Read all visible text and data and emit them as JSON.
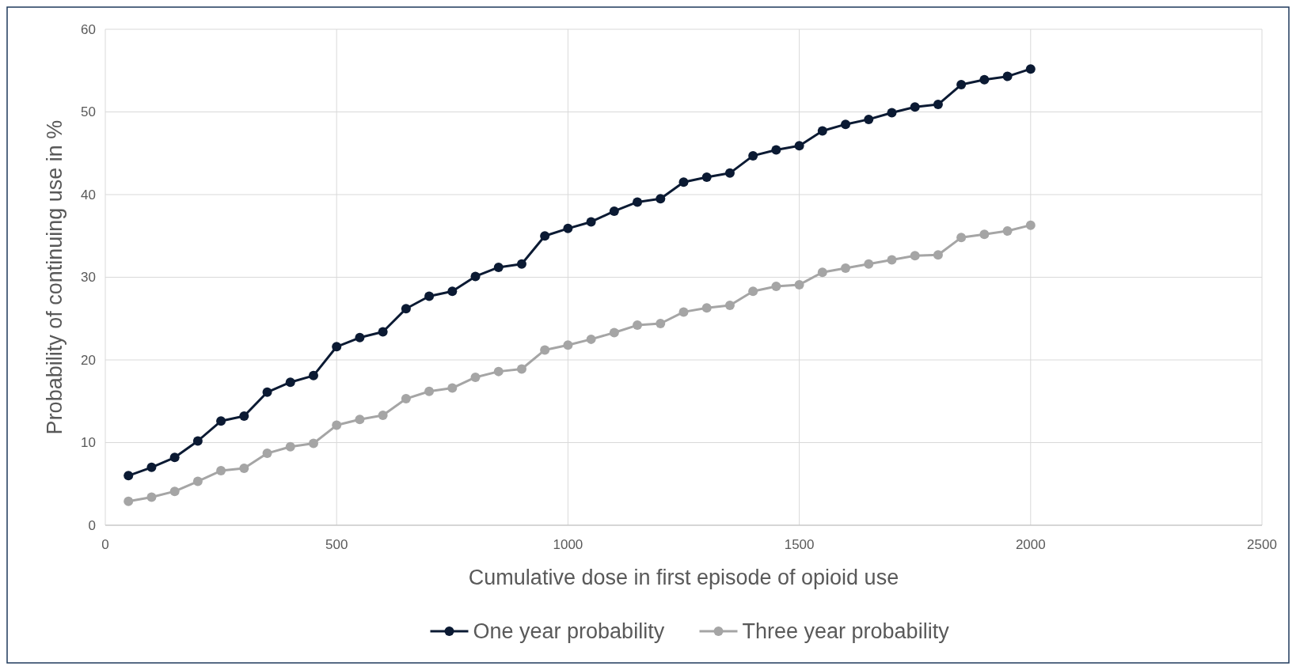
{
  "chart_data": {
    "type": "line",
    "xlabel": "Cumulative dose in first episode of opioid use",
    "ylabel": "Probability of continuing use in %",
    "x": [
      50,
      100,
      150,
      200,
      250,
      300,
      350,
      400,
      450,
      500,
      550,
      600,
      650,
      700,
      750,
      800,
      850,
      900,
      950,
      1000,
      1050,
      1100,
      1150,
      1200,
      1250,
      1300,
      1350,
      1400,
      1450,
      1500,
      1550,
      1600,
      1650,
      1700,
      1750,
      1800,
      1850,
      1900,
      1950,
      2000
    ],
    "series": [
      {
        "name": "One year probability",
        "color": "#0b1a33",
        "values": [
          6.0,
          7.0,
          8.2,
          10.2,
          12.6,
          13.2,
          16.1,
          17.3,
          18.1,
          21.6,
          22.7,
          23.4,
          26.2,
          27.7,
          28.3,
          30.1,
          31.2,
          31.6,
          35.0,
          35.9,
          36.7,
          38.0,
          39.1,
          39.5,
          41.5,
          42.1,
          42.6,
          44.7,
          45.4,
          45.9,
          47.7,
          48.5,
          49.1,
          49.9,
          50.6,
          50.9,
          53.3,
          53.9,
          54.3,
          55.2
        ]
      },
      {
        "name": "Three year probability",
        "color": "#a5a5a5",
        "values": [
          2.9,
          3.4,
          4.1,
          5.3,
          6.6,
          6.9,
          8.7,
          9.5,
          9.9,
          12.1,
          12.8,
          13.3,
          15.3,
          16.2,
          16.6,
          17.9,
          18.6,
          18.9,
          21.2,
          21.8,
          22.5,
          23.3,
          24.2,
          24.4,
          25.8,
          26.3,
          26.6,
          28.3,
          28.9,
          29.1,
          30.6,
          31.1,
          31.6,
          32.1,
          32.6,
          32.7,
          34.8,
          35.2,
          35.6,
          36.3
        ]
      }
    ],
    "xlim": [
      0,
      2500
    ],
    "xticks": [
      0,
      500,
      1000,
      1500,
      2000,
      2500
    ],
    "ylim": [
      0,
      60
    ],
    "yticks": [
      0,
      10,
      20,
      30,
      40,
      50,
      60
    ],
    "grid": true,
    "legend": "bottom",
    "marker": "circle",
    "line_style": "solid"
  }
}
